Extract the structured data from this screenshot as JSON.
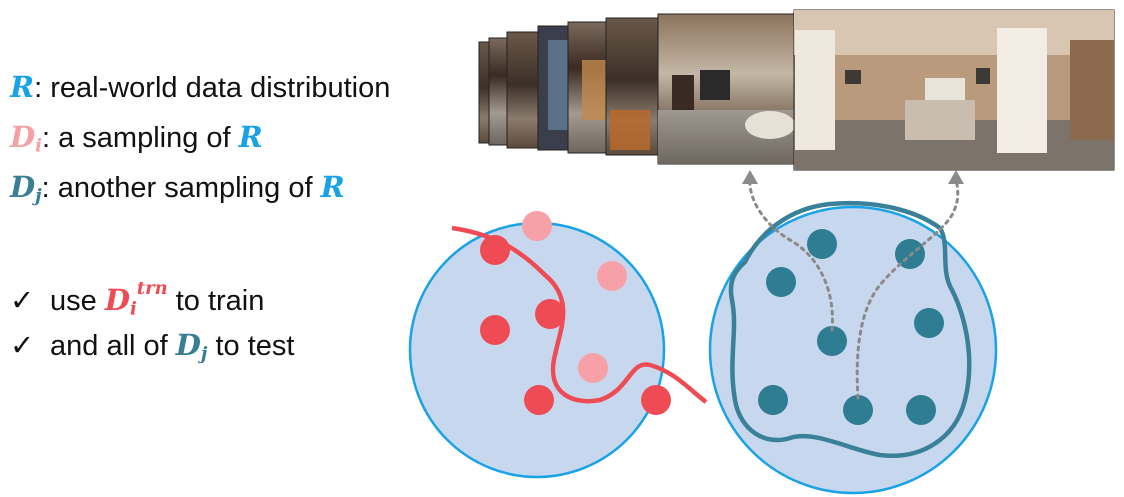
{
  "legend": {
    "r": {
      "symbol": "R",
      "text": ": real-world data distribution"
    },
    "di": {
      "symbol": "D",
      "subscript": "i",
      "text": ": a sampling of ",
      "ref": "R"
    },
    "dj": {
      "symbol": "D",
      "subscript": "j",
      "text": ": another sampling of ",
      "ref": "R"
    }
  },
  "checklist": [
    {
      "mark": "✓",
      "prefix": "use ",
      "symbol": "D",
      "subscript": "i",
      "superscript": "trn",
      "suffix": " to train"
    },
    {
      "mark": "✓",
      "prefix": "and all of ",
      "symbol": "D",
      "subscript": "j",
      "suffix": " to test"
    }
  ],
  "panorama_frames": {
    "count": 8
  },
  "colors": {
    "R": "#1aa2e6",
    "Di": "#f4a0a4",
    "Dj": "#3a7e95",
    "train_symbol": "#ef4b55",
    "circle_fill": "#c7d8ee",
    "circle_border": "#1aa2e6",
    "train_dot": "#ef4b55",
    "test_dot_i": "#f7a0a8",
    "dj_dot": "#2e7d92"
  },
  "icons": {
    "check": "check-mark-icon"
  }
}
